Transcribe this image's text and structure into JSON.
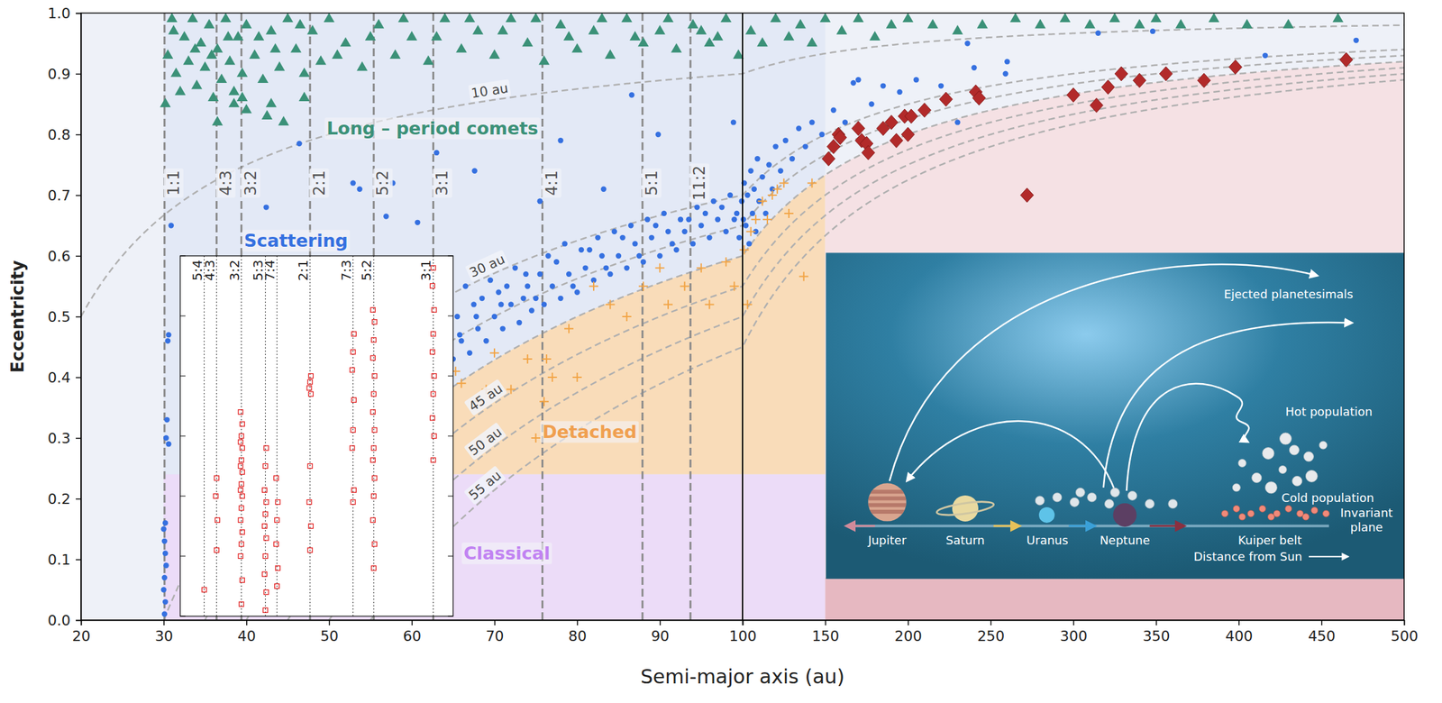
{
  "chart_data": {
    "type": "scatter",
    "x_label": "Semi-major axis (au)",
    "y_label": "Eccentricity",
    "panels": [
      {
        "xlim": [
          20,
          100
        ],
        "xticks": [
          20,
          30,
          40,
          50,
          60,
          70,
          80,
          90,
          100
        ]
      },
      {
        "xlim": [
          100,
          500
        ],
        "xticks": [
          150,
          200,
          250,
          300,
          350,
          400,
          450,
          500
        ]
      }
    ],
    "ylim": [
      0,
      1
    ],
    "yticks": [
      {
        "value": 0,
        "label": "0.0"
      },
      {
        "value": 0.1,
        "label": "0.1"
      },
      {
        "value": 0.2,
        "label": "0.2"
      },
      {
        "value": 0.3,
        "label": "0.3"
      },
      {
        "value": 0.4,
        "label": "0.4"
      },
      {
        "value": 0.5,
        "label": "0.5"
      },
      {
        "value": 0.6,
        "label": "0.6"
      },
      {
        "value": 0.7,
        "label": "0.7"
      },
      {
        "value": 0.8,
        "label": "0.8"
      },
      {
        "value": 0.9,
        "label": "0.9"
      },
      {
        "value": 1,
        "label": "1.0"
      }
    ],
    "regions": [
      {
        "a": [
          20,
          500
        ],
        "e": [
          0,
          1
        ],
        "color": "#eef1f8"
      },
      {
        "a": [
          30,
          150
        ],
        "e": [
          {
            "q": 40
          },
          1
        ],
        "color": "#e3e9f6"
      },
      {
        "a": [
          30,
          150
        ],
        "e": [
          0.24,
          {
            "q": 40
          }
        ],
        "color": "#f9dcb9"
      },
      {
        "a": [
          30,
          150
        ],
        "e": [
          0,
          0.24
        ],
        "color": "#ecdcf8"
      },
      {
        "a": [
          150,
          500
        ],
        "e": [
          0,
          {
            "q": 40
          }
        ],
        "color": "#f5e1e4"
      },
      {
        "a": [
          150,
          500
        ],
        "e": [
          0,
          0.07
        ],
        "color": "#e6b8c1"
      }
    ],
    "perihelion_curves": [
      {
        "q": 10,
        "label": "10 au"
      },
      {
        "q": 30,
        "label": "30 au"
      },
      {
        "q": 35
      },
      {
        "q": 40
      },
      {
        "q": 45,
        "label": "45 au"
      },
      {
        "q": 50,
        "label": "50 au"
      },
      {
        "q": 55,
        "label": "55 au"
      }
    ],
    "resonances": [
      {
        "label": "1:1",
        "a": 30.1
      },
      {
        "label": "4:3",
        "a": 36.4
      },
      {
        "label": "3:2",
        "a": 39.4
      },
      {
        "label": "2:1",
        "a": 47.7
      },
      {
        "label": "5:2",
        "a": 55.4
      },
      {
        "label": "3:1",
        "a": 62.6
      },
      {
        "label": "4:1",
        "a": 75.8
      },
      {
        "label": "5:1",
        "a": 87.9
      },
      {
        "label": "11:2",
        "a": 93.7
      }
    ],
    "series": [
      {
        "marker": "triangle",
        "color": "#3b9178",
        "x": [
          30.2,
          30.5,
          31,
          31.5,
          32,
          32.5,
          33,
          33.5,
          34,
          34.5,
          35,
          35.5,
          36,
          36.5,
          37,
          37.5,
          38,
          38.5,
          39,
          39.5,
          40,
          41,
          42,
          43,
          44,
          45,
          46,
          47,
          48,
          49,
          50,
          52,
          54,
          56,
          58,
          60,
          62,
          64,
          66,
          68,
          70,
          72,
          74,
          76,
          78,
          80,
          82,
          84,
          86,
          88,
          90,
          92,
          94,
          96,
          98,
          99.5,
          36.5,
          38.5,
          39.5,
          40,
          42.5,
          43,
          44.5,
          47,
          105,
          112,
          120,
          128,
          135,
          142,
          150,
          160,
          170,
          180,
          190,
          200,
          215,
          230,
          245,
          265,
          280,
          295,
          310,
          325,
          340,
          350,
          365,
          385,
          405,
          430,
          460,
          31.2,
          33.8,
          35.8,
          37.8,
          41.5,
          43.5,
          46.5,
          51,
          55,
          59,
          63,
          67,
          71,
          75,
          79,
          83,
          87,
          91,
          95,
          97
        ],
        "values": [
          0.85,
          0.93,
          0.99,
          0.9,
          0.87,
          0.96,
          0.92,
          0.99,
          0.88,
          0.95,
          0.91,
          0.98,
          0.86,
          0.94,
          0.89,
          0.99,
          0.92,
          0.87,
          0.96,
          0.9,
          0.98,
          0.93,
          0.89,
          0.97,
          0.91,
          0.99,
          0.94,
          0.9,
          0.97,
          0.92,
          0.99,
          0.95,
          0.91,
          0.98,
          0.93,
          0.96,
          0.92,
          0.99,
          0.94,
          0.97,
          0.93,
          0.99,
          0.95,
          0.92,
          0.98,
          0.94,
          0.97,
          0.93,
          0.99,
          0.95,
          0.97,
          0.94,
          0.98,
          0.95,
          0.99,
          0.93,
          0.82,
          0.85,
          0.86,
          0.84,
          0.83,
          0.85,
          0.82,
          0.86,
          0.97,
          0.95,
          0.99,
          0.96,
          0.98,
          0.95,
          0.99,
          0.97,
          0.99,
          0.96,
          0.98,
          0.99,
          0.98,
          0.97,
          0.98,
          0.99,
          0.98,
          0.99,
          0.98,
          0.99,
          0.98,
          0.99,
          0.98,
          0.99,
          0.98,
          0.98,
          0.99,
          0.97,
          0.94,
          0.93,
          0.96,
          0.96,
          0.94,
          0.98,
          0.93,
          0.96,
          0.99,
          0.96,
          0.99,
          0.97,
          0.99,
          0.96,
          0.99,
          0.96,
          0.99,
          0.97,
          0.96
        ]
      },
      {
        "marker": "circle",
        "color": "#3570e0",
        "x": [
          30.1,
          30.2,
          30.0,
          30.1,
          30.3,
          30.2,
          30.1,
          30.0,
          30.2,
          30.3,
          30.6,
          30.4,
          30.5,
          30.6,
          30.9,
          42.4,
          46.4,
          52.9,
          53.7,
          56.9,
          57.7,
          60.7,
          63,
          67.6,
          78,
          83.2,
          86.6,
          89.8,
          98.9,
          75.5,
          65,
          65.5,
          66,
          66.5,
          67,
          67.5,
          68,
          69,
          69.5,
          70,
          70.5,
          71,
          72,
          72.5,
          73,
          74,
          74.5,
          75,
          76,
          76.5,
          77,
          78,
          78.5,
          79,
          80,
          80.5,
          81,
          82,
          82.5,
          83,
          84,
          84.5,
          85,
          86,
          86.5,
          87,
          88,
          88.5,
          89,
          90,
          90.5,
          91,
          92,
          92.5,
          93,
          94,
          94.5,
          95,
          96,
          96.5,
          97,
          98,
          98.5,
          99,
          99.6,
          99.9,
          65.8,
          67.8,
          70.8,
          73.5,
          75.5,
          77.5,
          79.5,
          81.5,
          83.5,
          85.5,
          87.5,
          89.5,
          91.5,
          93.5,
          95.5,
          97.5,
          99.3,
          68.5,
          71.5,
          73.8,
          100.5,
          101,
          102,
          103,
          104,
          105,
          106,
          107,
          108,
          109,
          110,
          112,
          114,
          116,
          118,
          120,
          123,
          126,
          130,
          134,
          138,
          142,
          148,
          155,
          162,
          167,
          170,
          178,
          185,
          195,
          205,
          220,
          230,
          236,
          240,
          259,
          260,
          315,
          348,
          416,
          471
        ],
        "values": [
          0.01,
          0.03,
          0.05,
          0.07,
          0.09,
          0.11,
          0.13,
          0.15,
          0.16,
          0.3,
          0.29,
          0.33,
          0.46,
          0.47,
          0.65,
          0.68,
          0.785,
          0.72,
          0.71,
          0.665,
          0.72,
          0.655,
          0.77,
          0.74,
          0.79,
          0.71,
          0.865,
          0.8,
          0.82,
          0.69,
          0.43,
          0.5,
          0.46,
          0.55,
          0.44,
          0.52,
          0.48,
          0.46,
          0.56,
          0.5,
          0.54,
          0.48,
          0.52,
          0.58,
          0.49,
          0.55,
          0.51,
          0.53,
          0.52,
          0.6,
          0.55,
          0.53,
          0.62,
          0.57,
          0.54,
          0.61,
          0.58,
          0.56,
          0.63,
          0.6,
          0.57,
          0.64,
          0.6,
          0.58,
          0.65,
          0.62,
          0.59,
          0.66,
          0.63,
          0.6,
          0.67,
          0.64,
          0.61,
          0.66,
          0.64,
          0.62,
          0.68,
          0.65,
          0.63,
          0.69,
          0.66,
          0.64,
          0.7,
          0.66,
          0.63,
          0.69,
          0.47,
          0.5,
          0.52,
          0.53,
          0.57,
          0.59,
          0.55,
          0.61,
          0.58,
          0.63,
          0.6,
          0.65,
          0.62,
          0.66,
          0.67,
          0.68,
          0.67,
          0.53,
          0.55,
          0.57,
          0.66,
          0.72,
          0.65,
          0.7,
          0.62,
          0.74,
          0.67,
          0.71,
          0.64,
          0.76,
          0.69,
          0.73,
          0.67,
          0.75,
          0.71,
          0.78,
          0.74,
          0.79,
          0.76,
          0.81,
          0.78,
          0.82,
          0.8,
          0.84,
          0.82,
          0.885,
          0.89,
          0.85,
          0.88,
          0.87,
          0.89,
          0.88,
          0.82,
          0.95,
          0.91,
          0.9,
          0.92,
          0.967,
          0.97,
          0.93,
          0.955
        ]
      },
      {
        "marker": "plus",
        "color": "#f2a445",
        "x": [
          65.3,
          66,
          68,
          69,
          70,
          72,
          74,
          75,
          76,
          76.3,
          77,
          79,
          80,
          82,
          84,
          86,
          88,
          90,
          91,
          93,
          95,
          96,
          98,
          99,
          101,
          103,
          105,
          108,
          112,
          115,
          118,
          121,
          125,
          128,
          137,
          142
        ],
        "values": [
          0.41,
          0.39,
          0.36,
          0.38,
          0.44,
          0.38,
          0.43,
          0.3,
          0.36,
          0.43,
          0.4,
          0.48,
          0.4,
          0.55,
          0.52,
          0.5,
          0.55,
          0.58,
          0.52,
          0.55,
          0.58,
          0.52,
          0.59,
          0.55,
          0.61,
          0.52,
          0.64,
          0.66,
          0.69,
          0.66,
          0.7,
          0.71,
          0.72,
          0.67,
          0.566,
          0.72
        ]
      },
      {
        "marker": "diamond",
        "color": "#b22a2a",
        "x": [
          152,
          155,
          158,
          159,
          170,
          172,
          175,
          176,
          185,
          190,
          193,
          198,
          200,
          202,
          210,
          223,
          241,
          243,
          272,
          300,
          314,
          321,
          329,
          340,
          356,
          379,
          398,
          465
        ],
        "values": [
          0.76,
          0.78,
          0.8,
          0.795,
          0.81,
          0.79,
          0.785,
          0.77,
          0.81,
          0.82,
          0.79,
          0.83,
          0.8,
          0.83,
          0.84,
          0.858,
          0.87,
          0.86,
          0.7,
          0.865,
          0.848,
          0.878,
          0.9,
          0.889,
          0.9,
          0.889,
          0.911,
          0.923
        ]
      }
    ],
    "annotations": [
      {
        "text": "Long – period comets",
        "a": 62.5,
        "e": 0.81,
        "color": "#3b9178"
      },
      {
        "text": "Scattering",
        "a": 46,
        "e": 0.625,
        "color": "#3570e0"
      },
      {
        "text": "Detached",
        "a": 81.5,
        "e": 0.31,
        "color": "#f0a050"
      },
      {
        "text": "Classical",
        "a": 71.5,
        "e": 0.11,
        "color": "#c183f2"
      }
    ],
    "inset": {
      "type": "scatter",
      "xlim": [
        32,
        65
      ],
      "ylim": [
        0,
        0.6
      ],
      "yticks": [
        0,
        0.1,
        0.2,
        0.3,
        0.4,
        0.5,
        0.6
      ],
      "tick_labels": false,
      "resonances": [
        {
          "label": "5:4",
          "a": 34.9
        },
        {
          "label": "4:3",
          "a": 36.4
        },
        {
          "label": "3:2",
          "a": 39.4
        },
        {
          "label": "5:3",
          "a": 42.3
        },
        {
          "label": "7:4",
          "a": 43.7
        },
        {
          "label": "2:1",
          "a": 47.7
        },
        {
          "label": "7:3",
          "a": 52.9
        },
        {
          "label": "5:2",
          "a": 55.4
        },
        {
          "label": "3:1",
          "a": 62.6
        }
      ],
      "series": [
        {
          "marker": "square",
          "color": "#e01010",
          "x": [
            34.9,
            36.4,
            36.5,
            36.3,
            36.4,
            39.4,
            39.5,
            39.3,
            39.4,
            39.5,
            39.3,
            39.4,
            39.5,
            39.3,
            39.4,
            39.5,
            39.3,
            39.4,
            39.5,
            39.3,
            39.4,
            39.5,
            39.3,
            42.3,
            42.4,
            42.2,
            42.3,
            42.4,
            42.2,
            42.3,
            42.4,
            42.2,
            42.3,
            42.4,
            43.7,
            43.8,
            43.6,
            43.7,
            43.8,
            43.6,
            47.7,
            47.8,
            47.6,
            47.7,
            47.8,
            47.6,
            47.7,
            47.8,
            52.9,
            53.0,
            52.8,
            52.9,
            53.0,
            52.8,
            52.9,
            53.0,
            55.4,
            55.5,
            55.3,
            55.4,
            55.5,
            55.3,
            55.4,
            55.5,
            55.3,
            55.4,
            55.5,
            55.3,
            55.4,
            55.5,
            55.3,
            62.6,
            62.7,
            62.5,
            62.6,
            62.7,
            62.5,
            62.6,
            62.7,
            62.5,
            62.6
          ],
          "values": [
            0.044,
            0.11,
            0.16,
            0.2,
            0.23,
            0.02,
            0.06,
            0.1,
            0.12,
            0.14,
            0.16,
            0.18,
            0.2,
            0.21,
            0.22,
            0.24,
            0.25,
            0.26,
            0.28,
            0.29,
            0.3,
            0.32,
            0.34,
            0.01,
            0.04,
            0.07,
            0.1,
            0.13,
            0.15,
            0.17,
            0.19,
            0.21,
            0.25,
            0.28,
            0.05,
            0.08,
            0.12,
            0.16,
            0.19,
            0.23,
            0.11,
            0.15,
            0.19,
            0.25,
            0.37,
            0.38,
            0.39,
            0.4,
            0.19,
            0.21,
            0.28,
            0.31,
            0.36,
            0.41,
            0.44,
            0.47,
            0.08,
            0.12,
            0.16,
            0.2,
            0.23,
            0.26,
            0.28,
            0.31,
            0.34,
            0.37,
            0.4,
            0.43,
            0.46,
            0.49,
            0.51,
            0.26,
            0.3,
            0.33,
            0.37,
            0.4,
            0.44,
            0.47,
            0.51,
            0.55,
            0.58
          ]
        }
      ]
    }
  },
  "diagram": {
    "ejected": "Ejected planetesimals",
    "hot": "Hot population",
    "cold": "Cold population",
    "plane": "Invariant plane",
    "planets": [
      "Jupiter",
      "Saturn",
      "Uranus",
      "Neptune"
    ],
    "belt": "Kuiper belt",
    "distance": "Distance from Sun"
  }
}
